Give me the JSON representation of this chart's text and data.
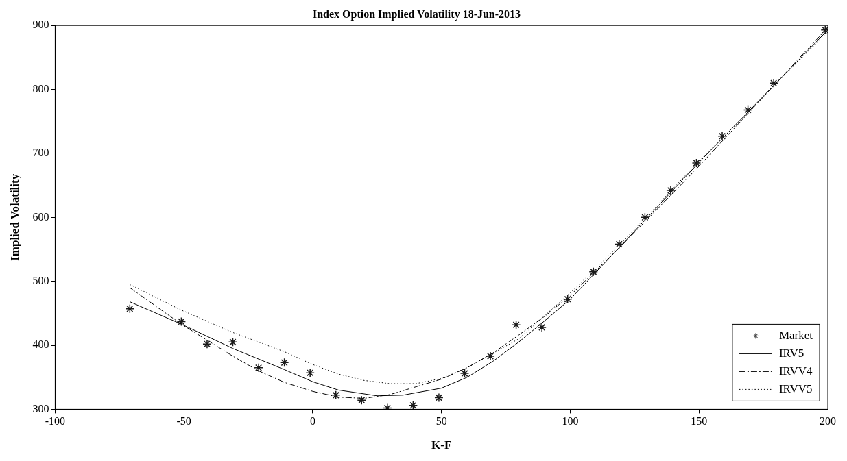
{
  "chart_data": {
    "type": "line",
    "title": "Index Option Implied Volatility 18-Jun-2013",
    "xlabel": "K-F",
    "ylabel": "Implied Volatility",
    "xlim": [
      -100,
      200
    ],
    "xticks": [
      -100,
      -50,
      0,
      50,
      100,
      150,
      200
    ],
    "ylim": [
      300,
      900
    ],
    "yticks": [
      300,
      400,
      500,
      600,
      700,
      800,
      900
    ],
    "grid": false,
    "legend": "bottom right",
    "series": [
      {
        "name": "Market",
        "type": "scatter",
        "marker": "cross",
        "color": "#1a1a1a",
        "x": [
          -71,
          -51,
          -41,
          -31,
          -21,
          -11,
          -1,
          9,
          19,
          29,
          39,
          49,
          59,
          69,
          79,
          89,
          99,
          109,
          119,
          129,
          139,
          149,
          159,
          169,
          179,
          199
        ],
        "values": [
          457,
          437,
          402,
          405,
          365,
          373,
          357,
          322,
          314,
          302,
          306,
          318,
          356,
          383,
          432,
          428,
          472,
          515,
          558,
          600,
          642,
          685,
          727,
          768,
          810,
          893
        ]
      },
      {
        "name": "IRV5",
        "type": "line",
        "line_style": "solid",
        "color": "#000000",
        "x": [
          -71,
          -51,
          -31,
          -11,
          0,
          10,
          25,
          35,
          50,
          60,
          70,
          80,
          90,
          100,
          120,
          150,
          200
        ],
        "values": [
          468,
          433,
          395,
          362,
          343,
          330,
          321,
          322,
          333,
          350,
          375,
          405,
          438,
          472,
          557,
          686,
          893
        ]
      },
      {
        "name": "IRVV4",
        "type": "line",
        "line_style": "dashdot",
        "color": "#000000",
        "x": [
          -71,
          -51,
          -41,
          -31,
          -21,
          -11,
          0,
          10,
          20,
          30,
          50,
          60,
          70,
          80,
          90,
          100,
          120,
          150,
          200
        ],
        "values": [
          490,
          433,
          408,
          383,
          360,
          342,
          328,
          319,
          317,
          323,
          347,
          365,
          388,
          416,
          445,
          478,
          556,
          680,
          897
        ]
      },
      {
        "name": "IRVV5",
        "type": "line",
        "line_style": "dotted",
        "color": "#000000",
        "x": [
          -71,
          -51,
          -31,
          -11,
          0,
          10,
          20,
          30,
          40,
          50,
          60,
          80,
          100,
          120,
          150,
          200
        ],
        "values": [
          495,
          455,
          420,
          390,
          370,
          355,
          345,
          340,
          340,
          348,
          365,
          410,
          482,
          560,
          688,
          890
        ]
      }
    ]
  }
}
